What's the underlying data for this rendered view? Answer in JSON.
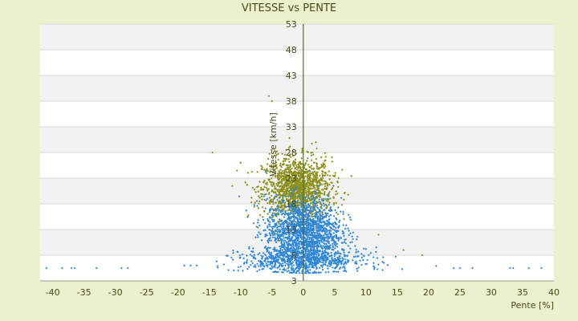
{
  "chart_data": {
    "type": "scatter",
    "title": "VITESSE vs PENTE",
    "xlabel": "Pente [%]",
    "ylabel": "Vitesse [km/h]",
    "xlim": [
      -42,
      40
    ],
    "ylim": [
      3,
      53
    ],
    "x_ticks": [
      "-40",
      "-35",
      "-30",
      "-25",
      "-20",
      "-15",
      "-10",
      "-5",
      "0",
      "5",
      "10",
      "15",
      "20",
      "25",
      "30",
      "35",
      "40"
    ],
    "y_ticks": [
      "3",
      "8",
      "13",
      "18",
      "23",
      "28",
      "33",
      "38",
      "43",
      "48",
      "53"
    ],
    "grid": "horizontal alternating bands",
    "legend": "none",
    "series": [
      {
        "color": "#2e86d6",
        "marker": "diamond",
        "clusters": [
          {
            "x_center": 0,
            "x_spread": 5.5,
            "y_center": 12.5,
            "y_spread": 5.5,
            "count": 1600
          },
          {
            "x_center": 0,
            "x_spread": 9,
            "y_center": 7,
            "y_spread": 2,
            "count": 700
          }
        ],
        "outliers": [
          [
            -41,
            5.5
          ],
          [
            -38.5,
            5.5
          ],
          [
            -37,
            5.5
          ],
          [
            -36.5,
            5.5
          ],
          [
            -33,
            5.5
          ],
          [
            -29,
            5.5
          ],
          [
            -28,
            5.5
          ],
          [
            -19,
            6
          ],
          [
            -18,
            6
          ],
          [
            -17,
            6
          ],
          [
            24,
            5.5
          ],
          [
            25,
            5.5
          ],
          [
            27,
            5.5
          ],
          [
            33,
            5.5
          ],
          [
            33.5,
            5.5
          ],
          [
            36,
            5.5
          ],
          [
            38,
            5.5
          ]
        ]
      },
      {
        "color": "#8b8f1a",
        "marker": "diamond",
        "clusters": [
          {
            "x_center": -1,
            "x_spread": 5,
            "y_center": 21,
            "y_spread": 5,
            "count": 1400
          }
        ],
        "outliers": [
          [
            -5.5,
            39
          ],
          [
            -5,
            38
          ],
          [
            -14.5,
            28
          ],
          [
            -10,
            26
          ],
          [
            2,
            30
          ],
          [
            12,
            12
          ],
          [
            16,
            9
          ],
          [
            19,
            8
          ]
        ]
      }
    ]
  }
}
